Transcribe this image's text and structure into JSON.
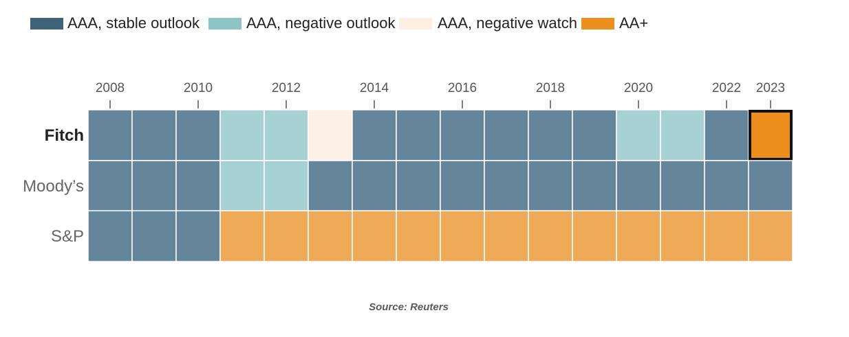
{
  "colors": {
    "AAA, stable outlook": "#65869a",
    "AAA, negative outlook": "#a6d0d1",
    "AAA, negative watch": "#fdf0e6",
    "AA+": "#efaa58",
    "highlight_fill": "#ec8f1f",
    "highlight_stroke": "#111111",
    "legend_stable": "#3f6378",
    "legend_negative_outlook": "#8ec4c4",
    "legend_negative_watch": "#fdefe2",
    "legend_aa_plus": "#ec8f1f"
  },
  "chart_data": {
    "type": "heatmap",
    "title": "",
    "x_ticks": [
      "2008",
      "2010",
      "2012",
      "2014",
      "2016",
      "2018",
      "2020",
      "2022",
      "2023"
    ],
    "legend": {
      "placement": "top-left",
      "entries": [
        "AAA, stable outlook",
        "AAA, negative outlook",
        "AAA, negative watch",
        "AA+"
      ]
    },
    "rows": [
      {
        "name": "Fitch",
        "emphasis": true,
        "cells": [
          "AAA, stable outlook",
          "AAA, stable outlook",
          "AAA, stable outlook",
          "AAA, negative outlook",
          "AAA, negative outlook",
          "AAA, negative watch",
          "AAA, stable outlook",
          "AAA, stable outlook",
          "AAA, stable outlook",
          "AAA, stable outlook",
          "AAA, stable outlook",
          "AAA, stable outlook",
          "AAA, negative outlook",
          "AAA, negative outlook",
          "AAA, stable outlook",
          "AA+"
        ],
        "highlight_last": true
      },
      {
        "name": "Moody’s",
        "emphasis": false,
        "cells": [
          "AAA, stable outlook",
          "AAA, stable outlook",
          "AAA, stable outlook",
          "AAA, negative outlook",
          "AAA, negative outlook",
          "AAA, stable outlook",
          "AAA, stable outlook",
          "AAA, stable outlook",
          "AAA, stable outlook",
          "AAA, stable outlook",
          "AAA, stable outlook",
          "AAA, stable outlook",
          "AAA, stable outlook",
          "AAA, stable outlook",
          "AAA, stable outlook",
          "AAA, stable outlook"
        ],
        "highlight_last": false
      },
      {
        "name": "S&P",
        "emphasis": false,
        "cells": [
          "AAA, stable outlook",
          "AAA, stable outlook",
          "AAA, stable outlook",
          "AA+",
          "AA+",
          "AA+",
          "AA+",
          "AA+",
          "AA+",
          "AA+",
          "AA+",
          "AA+",
          "AA+",
          "AA+",
          "AA+",
          "AA+"
        ],
        "highlight_last": false
      }
    ]
  },
  "source": "Source: Reuters"
}
